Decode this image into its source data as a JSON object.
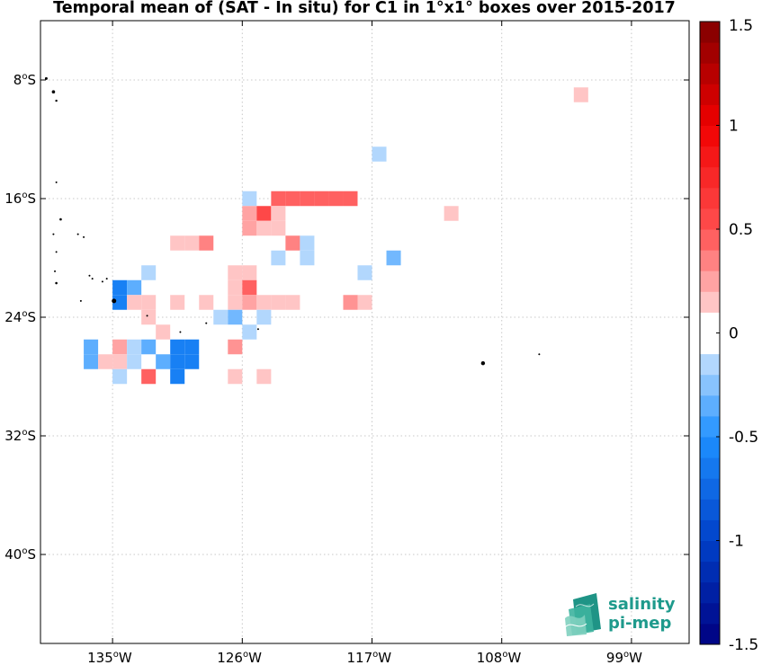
{
  "title": "Temporal mean of (SAT - In situ) for C1 in 1°x1° boxes over 2015-2017",
  "map": {
    "lon_range": [
      -140,
      -95
    ],
    "lat_range": [
      -46,
      -4
    ],
    "grid": true,
    "lon_ticks": [
      {
        "value": -135,
        "deg": "135",
        "hemi": "W"
      },
      {
        "value": -126,
        "deg": "126",
        "hemi": "W"
      },
      {
        "value": -117,
        "deg": "117",
        "hemi": "W"
      },
      {
        "value": -108,
        "deg": "108",
        "hemi": "W"
      },
      {
        "value": -99,
        "deg": "99",
        "hemi": "W"
      }
    ],
    "lat_ticks": [
      {
        "value": -8,
        "deg": "8",
        "hemi": "S"
      },
      {
        "value": -16,
        "deg": "16",
        "hemi": "S"
      },
      {
        "value": -24,
        "deg": "24",
        "hemi": "S"
      },
      {
        "value": -32,
        "deg": "32",
        "hemi": "S"
      },
      {
        "value": -40,
        "deg": "40",
        "hemi": "S"
      }
    ],
    "degree_symbol": "o",
    "colorbar": {
      "min": -1.5,
      "max": 1.5,
      "step": 0.1,
      "tick_labels": [
        "1.5",
        "1",
        "0.5",
        "0",
        "-0.5",
        "-1",
        "-1.5"
      ],
      "tick_values": [
        1.5,
        1,
        0.5,
        0,
        -0.5,
        -1,
        -1.5
      ],
      "colormap": "blue-white-red"
    },
    "cells": [
      {
        "lon": -103,
        "lat": -9,
        "v": 0.15
      },
      {
        "lon": -117,
        "lat": -13,
        "v": -0.15
      },
      {
        "lon": -112,
        "lat": -17,
        "v": 0.15
      },
      {
        "lon": -126,
        "lat": -16,
        "v": -0.15
      },
      {
        "lon": -124,
        "lat": -16,
        "v": 0.45
      },
      {
        "lon": -123,
        "lat": -16,
        "v": 0.45
      },
      {
        "lon": -122,
        "lat": -16,
        "v": 0.45
      },
      {
        "lon": -121,
        "lat": -16,
        "v": 0.45
      },
      {
        "lon": -120,
        "lat": -16,
        "v": 0.45
      },
      {
        "lon": -119,
        "lat": -16,
        "v": 0.45
      },
      {
        "lon": -126,
        "lat": -17,
        "v": 0.25
      },
      {
        "lon": -125,
        "lat": -17,
        "v": 0.55
      },
      {
        "lon": -124,
        "lat": -17,
        "v": 0.15
      },
      {
        "lon": -126,
        "lat": -18,
        "v": 0.25
      },
      {
        "lon": -125,
        "lat": -18,
        "v": 0.15
      },
      {
        "lon": -124,
        "lat": -18,
        "v": 0.15
      },
      {
        "lon": -131,
        "lat": -19,
        "v": 0.15
      },
      {
        "lon": -130,
        "lat": -19,
        "v": 0.15
      },
      {
        "lon": -129,
        "lat": -19,
        "v": 0.35
      },
      {
        "lon": -123,
        "lat": -19,
        "v": 0.35
      },
      {
        "lon": -122,
        "lat": -19,
        "v": -0.15
      },
      {
        "lon": -124,
        "lat": -20,
        "v": -0.15
      },
      {
        "lon": -122,
        "lat": -20,
        "v": -0.15
      },
      {
        "lon": -116,
        "lat": -20,
        "v": -0.3
      },
      {
        "lon": -133,
        "lat": -21,
        "v": -0.15
      },
      {
        "lon": -127,
        "lat": -21,
        "v": 0.15
      },
      {
        "lon": -126,
        "lat": -21,
        "v": 0.15
      },
      {
        "lon": -118,
        "lat": -21,
        "v": -0.15
      },
      {
        "lon": -135,
        "lat": -22,
        "v": -0.6
      },
      {
        "lon": -134,
        "lat": -22,
        "v": -0.35
      },
      {
        "lon": -127,
        "lat": -22,
        "v": 0.15
      },
      {
        "lon": -126,
        "lat": -22,
        "v": 0.45
      },
      {
        "lon": -135,
        "lat": -23,
        "v": -0.6
      },
      {
        "lon": -134,
        "lat": -23,
        "v": 0.15
      },
      {
        "lon": -133,
        "lat": -23,
        "v": 0.15
      },
      {
        "lon": -131,
        "lat": -23,
        "v": 0.15
      },
      {
        "lon": -129,
        "lat": -23,
        "v": 0.15
      },
      {
        "lon": -127,
        "lat": -23,
        "v": 0.15
      },
      {
        "lon": -126,
        "lat": -23,
        "v": 0.25
      },
      {
        "lon": -125,
        "lat": -23,
        "v": 0.15
      },
      {
        "lon": -124,
        "lat": -23,
        "v": 0.15
      },
      {
        "lon": -123,
        "lat": -23,
        "v": 0.15
      },
      {
        "lon": -119,
        "lat": -23,
        "v": 0.3
      },
      {
        "lon": -118,
        "lat": -23,
        "v": 0.15
      },
      {
        "lon": -133,
        "lat": -24,
        "v": 0.15
      },
      {
        "lon": -128,
        "lat": -24,
        "v": -0.15
      },
      {
        "lon": -127,
        "lat": -24,
        "v": -0.3
      },
      {
        "lon": -125,
        "lat": -24,
        "v": -0.15
      },
      {
        "lon": -132,
        "lat": -25,
        "v": 0.15
      },
      {
        "lon": -126,
        "lat": -25,
        "v": -0.15
      },
      {
        "lon": -137,
        "lat": -26,
        "v": -0.35
      },
      {
        "lon": -135,
        "lat": -26,
        "v": 0.25
      },
      {
        "lon": -134,
        "lat": -26,
        "v": -0.15
      },
      {
        "lon": -133,
        "lat": -26,
        "v": -0.35
      },
      {
        "lon": -131,
        "lat": -26,
        "v": -0.6
      },
      {
        "lon": -130,
        "lat": -26,
        "v": -0.6
      },
      {
        "lon": -127,
        "lat": -26,
        "v": 0.3
      },
      {
        "lon": -137,
        "lat": -27,
        "v": -0.35
      },
      {
        "lon": -136,
        "lat": -27,
        "v": 0.15
      },
      {
        "lon": -135,
        "lat": -27,
        "v": 0.15
      },
      {
        "lon": -134,
        "lat": -27,
        "v": -0.15
      },
      {
        "lon": -132,
        "lat": -27,
        "v": -0.35
      },
      {
        "lon": -131,
        "lat": -27,
        "v": -0.6
      },
      {
        "lon": -130,
        "lat": -27,
        "v": -0.6
      },
      {
        "lon": -135,
        "lat": -28,
        "v": -0.15
      },
      {
        "lon": -133,
        "lat": -28,
        "v": 0.45
      },
      {
        "lon": -131,
        "lat": -28,
        "v": -0.6
      },
      {
        "lon": -127,
        "lat": -28,
        "v": 0.15
      },
      {
        "lon": -125,
        "lat": -28,
        "v": 0.15
      }
    ],
    "islands": [
      {
        "lon": -139.6,
        "lat": -7.9,
        "s": 1.5
      },
      {
        "lon": -139.1,
        "lat": -8.8,
        "s": 1.8
      },
      {
        "lon": -138.9,
        "lat": -9.4,
        "s": 1.2
      },
      {
        "lon": -138.9,
        "lat": -14.9,
        "s": 1
      },
      {
        "lon": -138.6,
        "lat": -17.4,
        "s": 1.3
      },
      {
        "lon": -137.4,
        "lat": -18.4,
        "s": 1
      },
      {
        "lon": -137.0,
        "lat": -18.6,
        "s": 1
      },
      {
        "lon": -139.1,
        "lat": -18.4,
        "s": 1
      },
      {
        "lon": -138.9,
        "lat": -19.6,
        "s": 1
      },
      {
        "lon": -139.0,
        "lat": -20.9,
        "s": 1
      },
      {
        "lon": -138.9,
        "lat": -21.7,
        "s": 1.3
      },
      {
        "lon": -136.6,
        "lat": -21.2,
        "s": 1
      },
      {
        "lon": -136.4,
        "lat": -21.4,
        "s": 1
      },
      {
        "lon": -135.4,
        "lat": -21.4,
        "s": 1
      },
      {
        "lon": -135.7,
        "lat": -21.6,
        "s": 1
      },
      {
        "lon": -137.2,
        "lat": -22.9,
        "s": 1
      },
      {
        "lon": -134.9,
        "lat": -22.9,
        "s": 2.5
      },
      {
        "lon": -132.6,
        "lat": -23.9,
        "s": 1
      },
      {
        "lon": -130.3,
        "lat": -25.0,
        "s": 1
      },
      {
        "lon": -128.5,
        "lat": -24.4,
        "s": 1
      },
      {
        "lon": -124.9,
        "lat": -24.8,
        "s": 1
      },
      {
        "lon": -109.3,
        "lat": -27.1,
        "s": 2.2
      },
      {
        "lon": -105.4,
        "lat": -26.5,
        "s": 1
      }
    ]
  },
  "logo": {
    "line1": "salinity",
    "line2": "pi-mep"
  }
}
